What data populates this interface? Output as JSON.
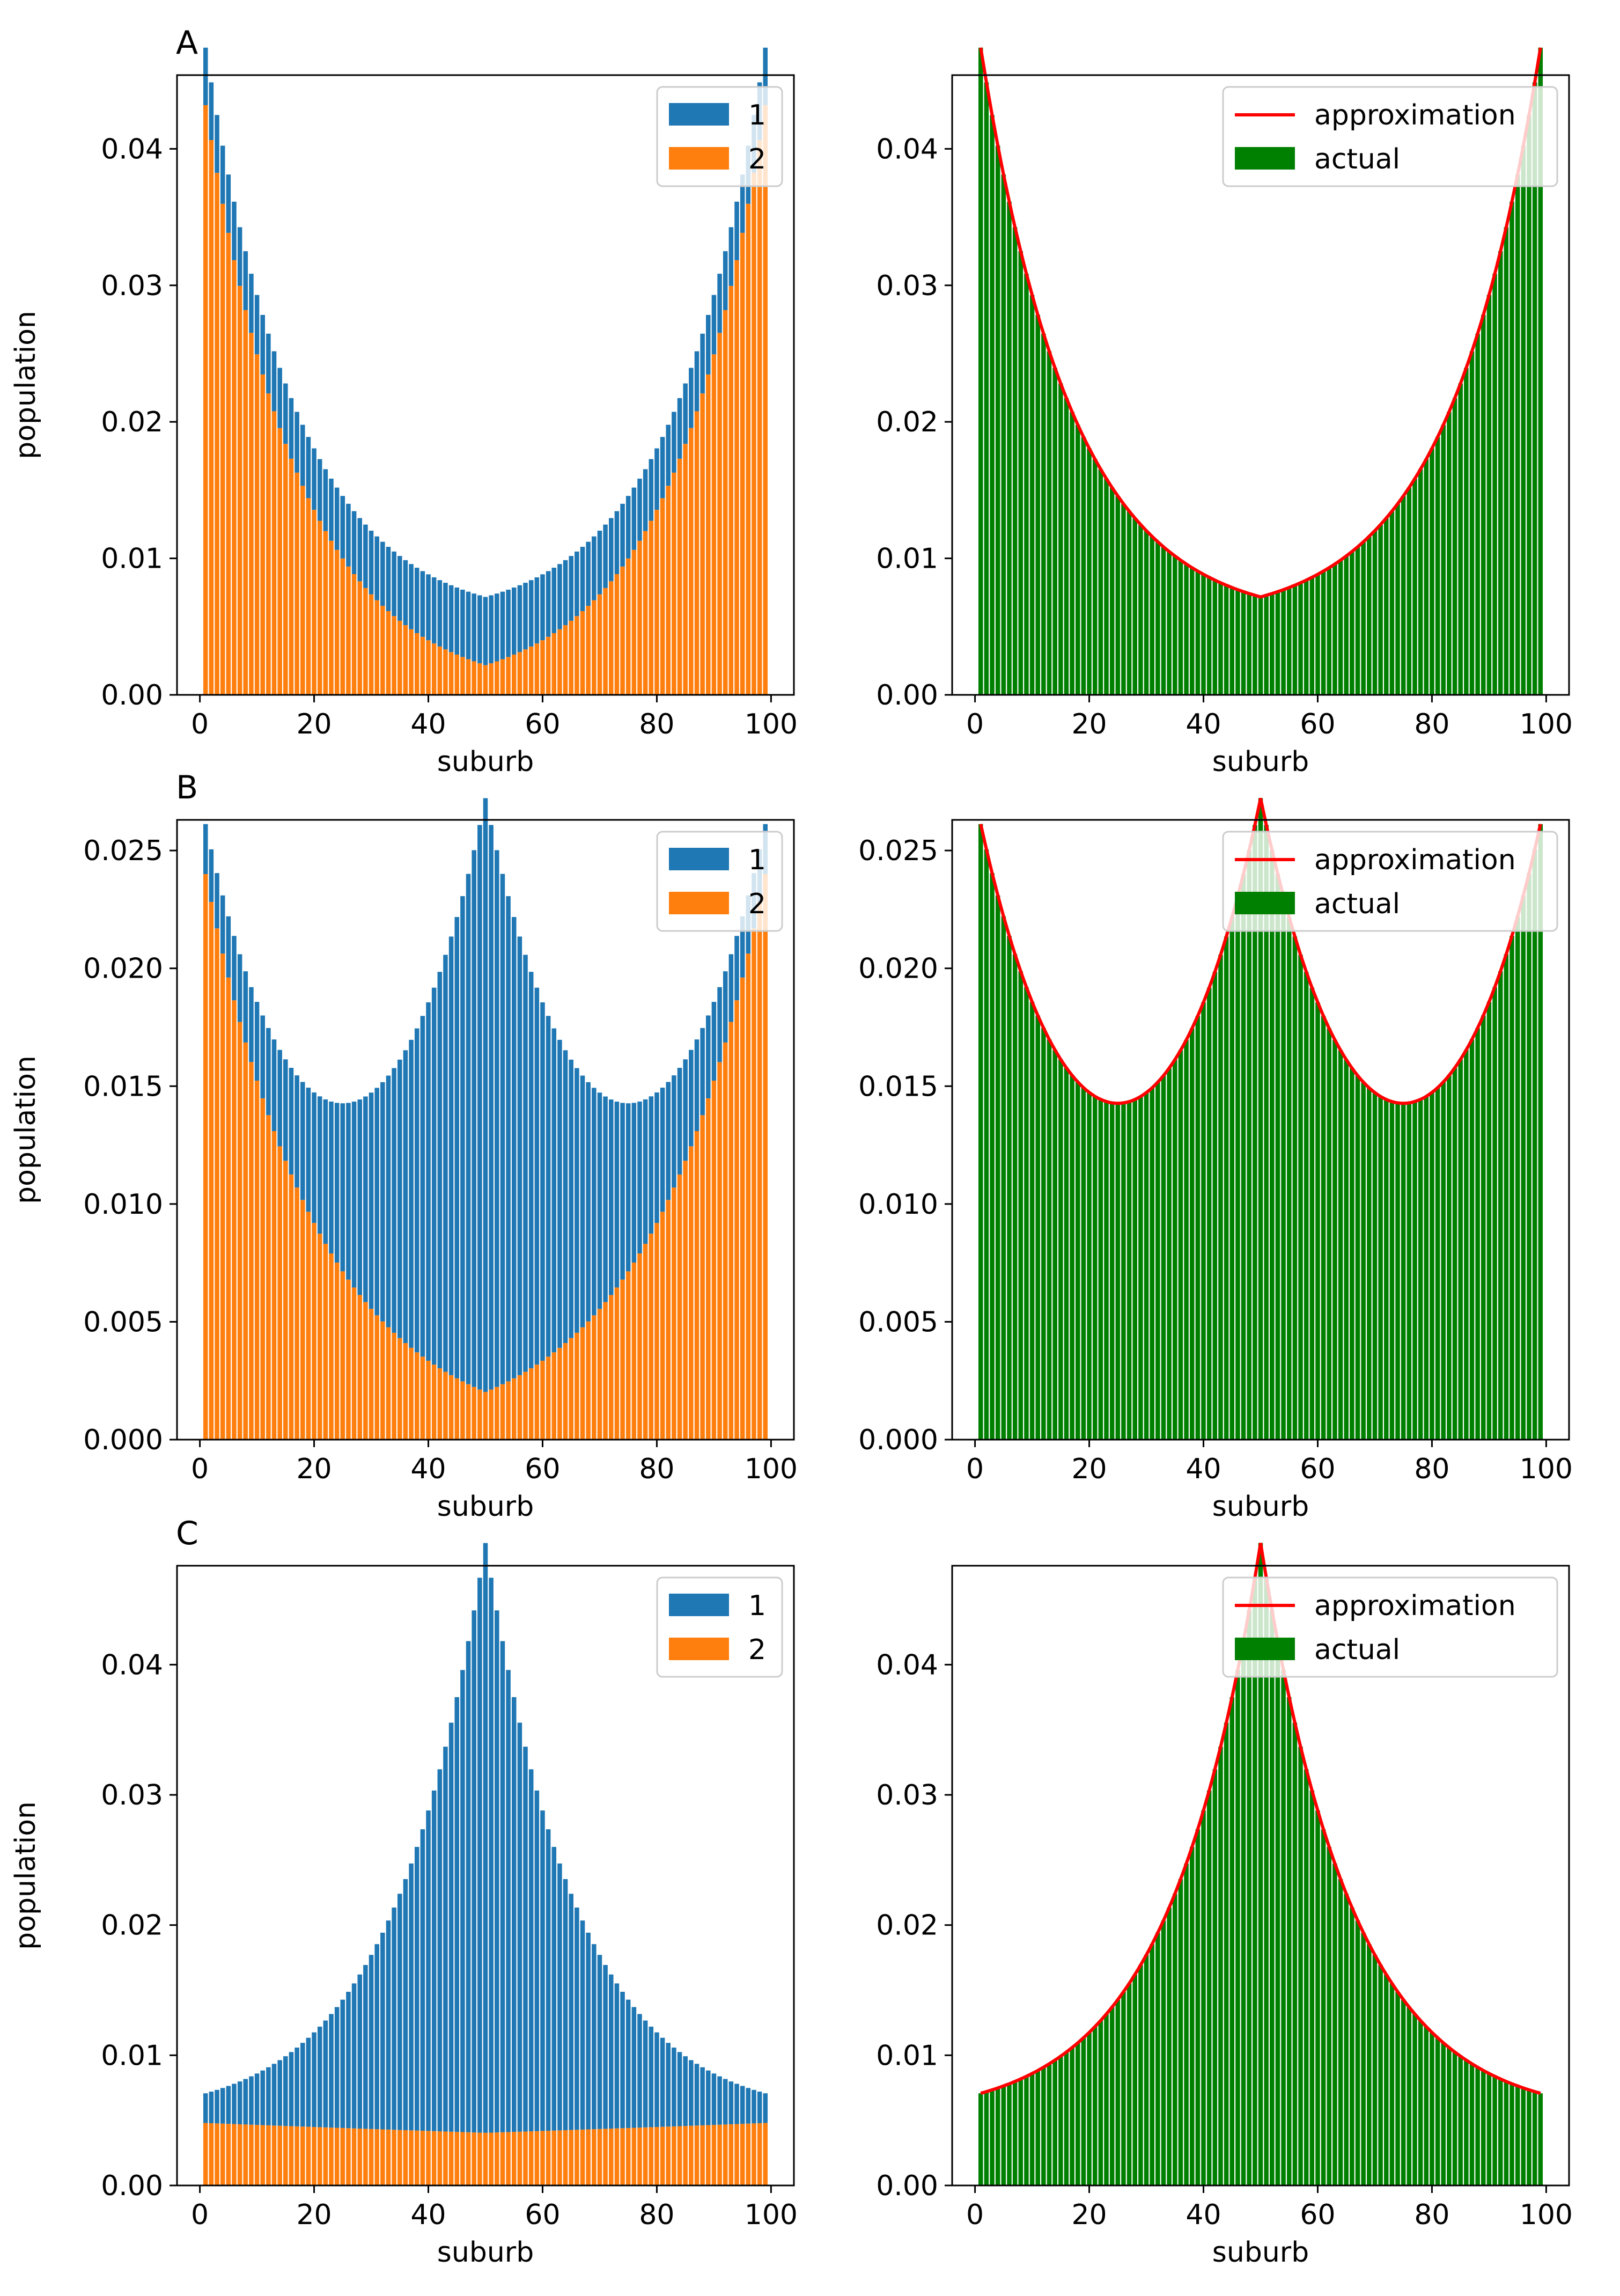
{
  "figure": {
    "panel_labels": [
      "A",
      "B",
      "C"
    ],
    "xlabel": "suburb",
    "ylabel": "population",
    "xticks": [
      0,
      20,
      40,
      60,
      80,
      100
    ],
    "left_legend": [
      "1",
      "2"
    ],
    "right_legend": [
      "approximation",
      "actual"
    ],
    "colors": {
      "group1": "#1f77b4",
      "group2": "#ff7f0e",
      "actual": "#008000",
      "approximation": "#ff0000"
    }
  },
  "chart_data": [
    {
      "panel": "A",
      "side": "left",
      "type": "bar",
      "stacked": true,
      "xlabel": "suburb",
      "ylabel": "population",
      "xlim": [
        -4,
        104
      ],
      "ylim": [
        0,
        0.0454
      ],
      "yticks": [
        "0.00",
        "0.01",
        "0.02",
        "0.03",
        "0.04"
      ],
      "series": [
        {
          "name": "1",
          "model": {
            "center": 50,
            "peak": 0.005,
            "tail": 0.0035
          }
        },
        {
          "name": "2",
          "model": {
            "edge": 0.0432,
            "tail": 0.061
          }
        }
      ],
      "legend": {
        "labels": [
          "1",
          "2"
        ],
        "location": "upper right"
      }
    },
    {
      "panel": "A",
      "side": "right",
      "type": "bar",
      "xlabel": "suburb",
      "ylabel": "",
      "xlim": [
        -4,
        104
      ],
      "ylim": [
        0,
        0.0454
      ],
      "yticks": [
        "0.00",
        "0.01",
        "0.02",
        "0.03",
        "0.04"
      ],
      "series": [
        {
          "name": "actual",
          "kind": "bar",
          "model": "sum-of-left"
        },
        {
          "name": "approximation",
          "kind": "line",
          "model": "sum-of-left"
        }
      ],
      "legend": {
        "labels": [
          "approximation",
          "actual"
        ],
        "location": "upper right"
      }
    },
    {
      "panel": "B",
      "side": "left",
      "type": "bar",
      "stacked": true,
      "xlabel": "suburb",
      "ylabel": "population",
      "xlim": [
        -4,
        104
      ],
      "ylim": [
        0,
        0.0263
      ],
      "yticks": [
        "0.000",
        "0.005",
        "0.010",
        "0.015",
        "0.020",
        "0.025"
      ],
      "series": [
        {
          "name": "1",
          "model": {
            "center": 50,
            "peak": 0.0252,
            "tail": 0.0505
          }
        },
        {
          "name": "2",
          "model": {
            "edge": 0.024,
            "tail": 0.0505
          }
        }
      ],
      "legend": {
        "labels": [
          "1",
          "2"
        ],
        "location": "upper right"
      }
    },
    {
      "panel": "B",
      "side": "right",
      "type": "bar",
      "xlabel": "suburb",
      "ylabel": "",
      "xlim": [
        -4,
        104
      ],
      "ylim": [
        0,
        0.0263
      ],
      "yticks": [
        "0.000",
        "0.005",
        "0.010",
        "0.015",
        "0.020",
        "0.025"
      ],
      "series": [
        {
          "name": "actual",
          "kind": "bar",
          "model": "sum-of-left"
        },
        {
          "name": "approximation",
          "kind": "line",
          "model": "sum-of-left"
        }
      ],
      "legend": {
        "labels": [
          "approximation",
          "actual"
        ],
        "location": "upper right"
      }
    },
    {
      "panel": "C",
      "side": "left",
      "type": "bar",
      "stacked": true,
      "xlabel": "suburb",
      "ylabel": "population",
      "xlim": [
        -4,
        104
      ],
      "ylim": [
        0,
        0.0476
      ],
      "yticks": [
        "0.00",
        "0.01",
        "0.02",
        "0.03",
        "0.04"
      ],
      "series": [
        {
          "name": "1",
          "model": {
            "center": 50,
            "peak": 0.0453,
            "tail": 0.061
          }
        },
        {
          "name": "2",
          "model": {
            "edge": 0.0048,
            "tail": 0.0035
          }
        }
      ],
      "legend": {
        "labels": [
          "1",
          "2"
        ],
        "location": "upper right"
      }
    },
    {
      "panel": "C",
      "side": "right",
      "type": "bar",
      "xlabel": "suburb",
      "ylabel": "",
      "xlim": [
        -4,
        104
      ],
      "ylim": [
        0,
        0.0476
      ],
      "yticks": [
        "0.00",
        "0.01",
        "0.02",
        "0.03",
        "0.04"
      ],
      "series": [
        {
          "name": "actual",
          "kind": "bar",
          "model": "sum-of-left"
        },
        {
          "name": "approximation",
          "kind": "line",
          "model": "sum-of-left"
        }
      ],
      "legend": {
        "labels": [
          "approximation",
          "actual"
        ],
        "location": "upper right"
      }
    }
  ]
}
